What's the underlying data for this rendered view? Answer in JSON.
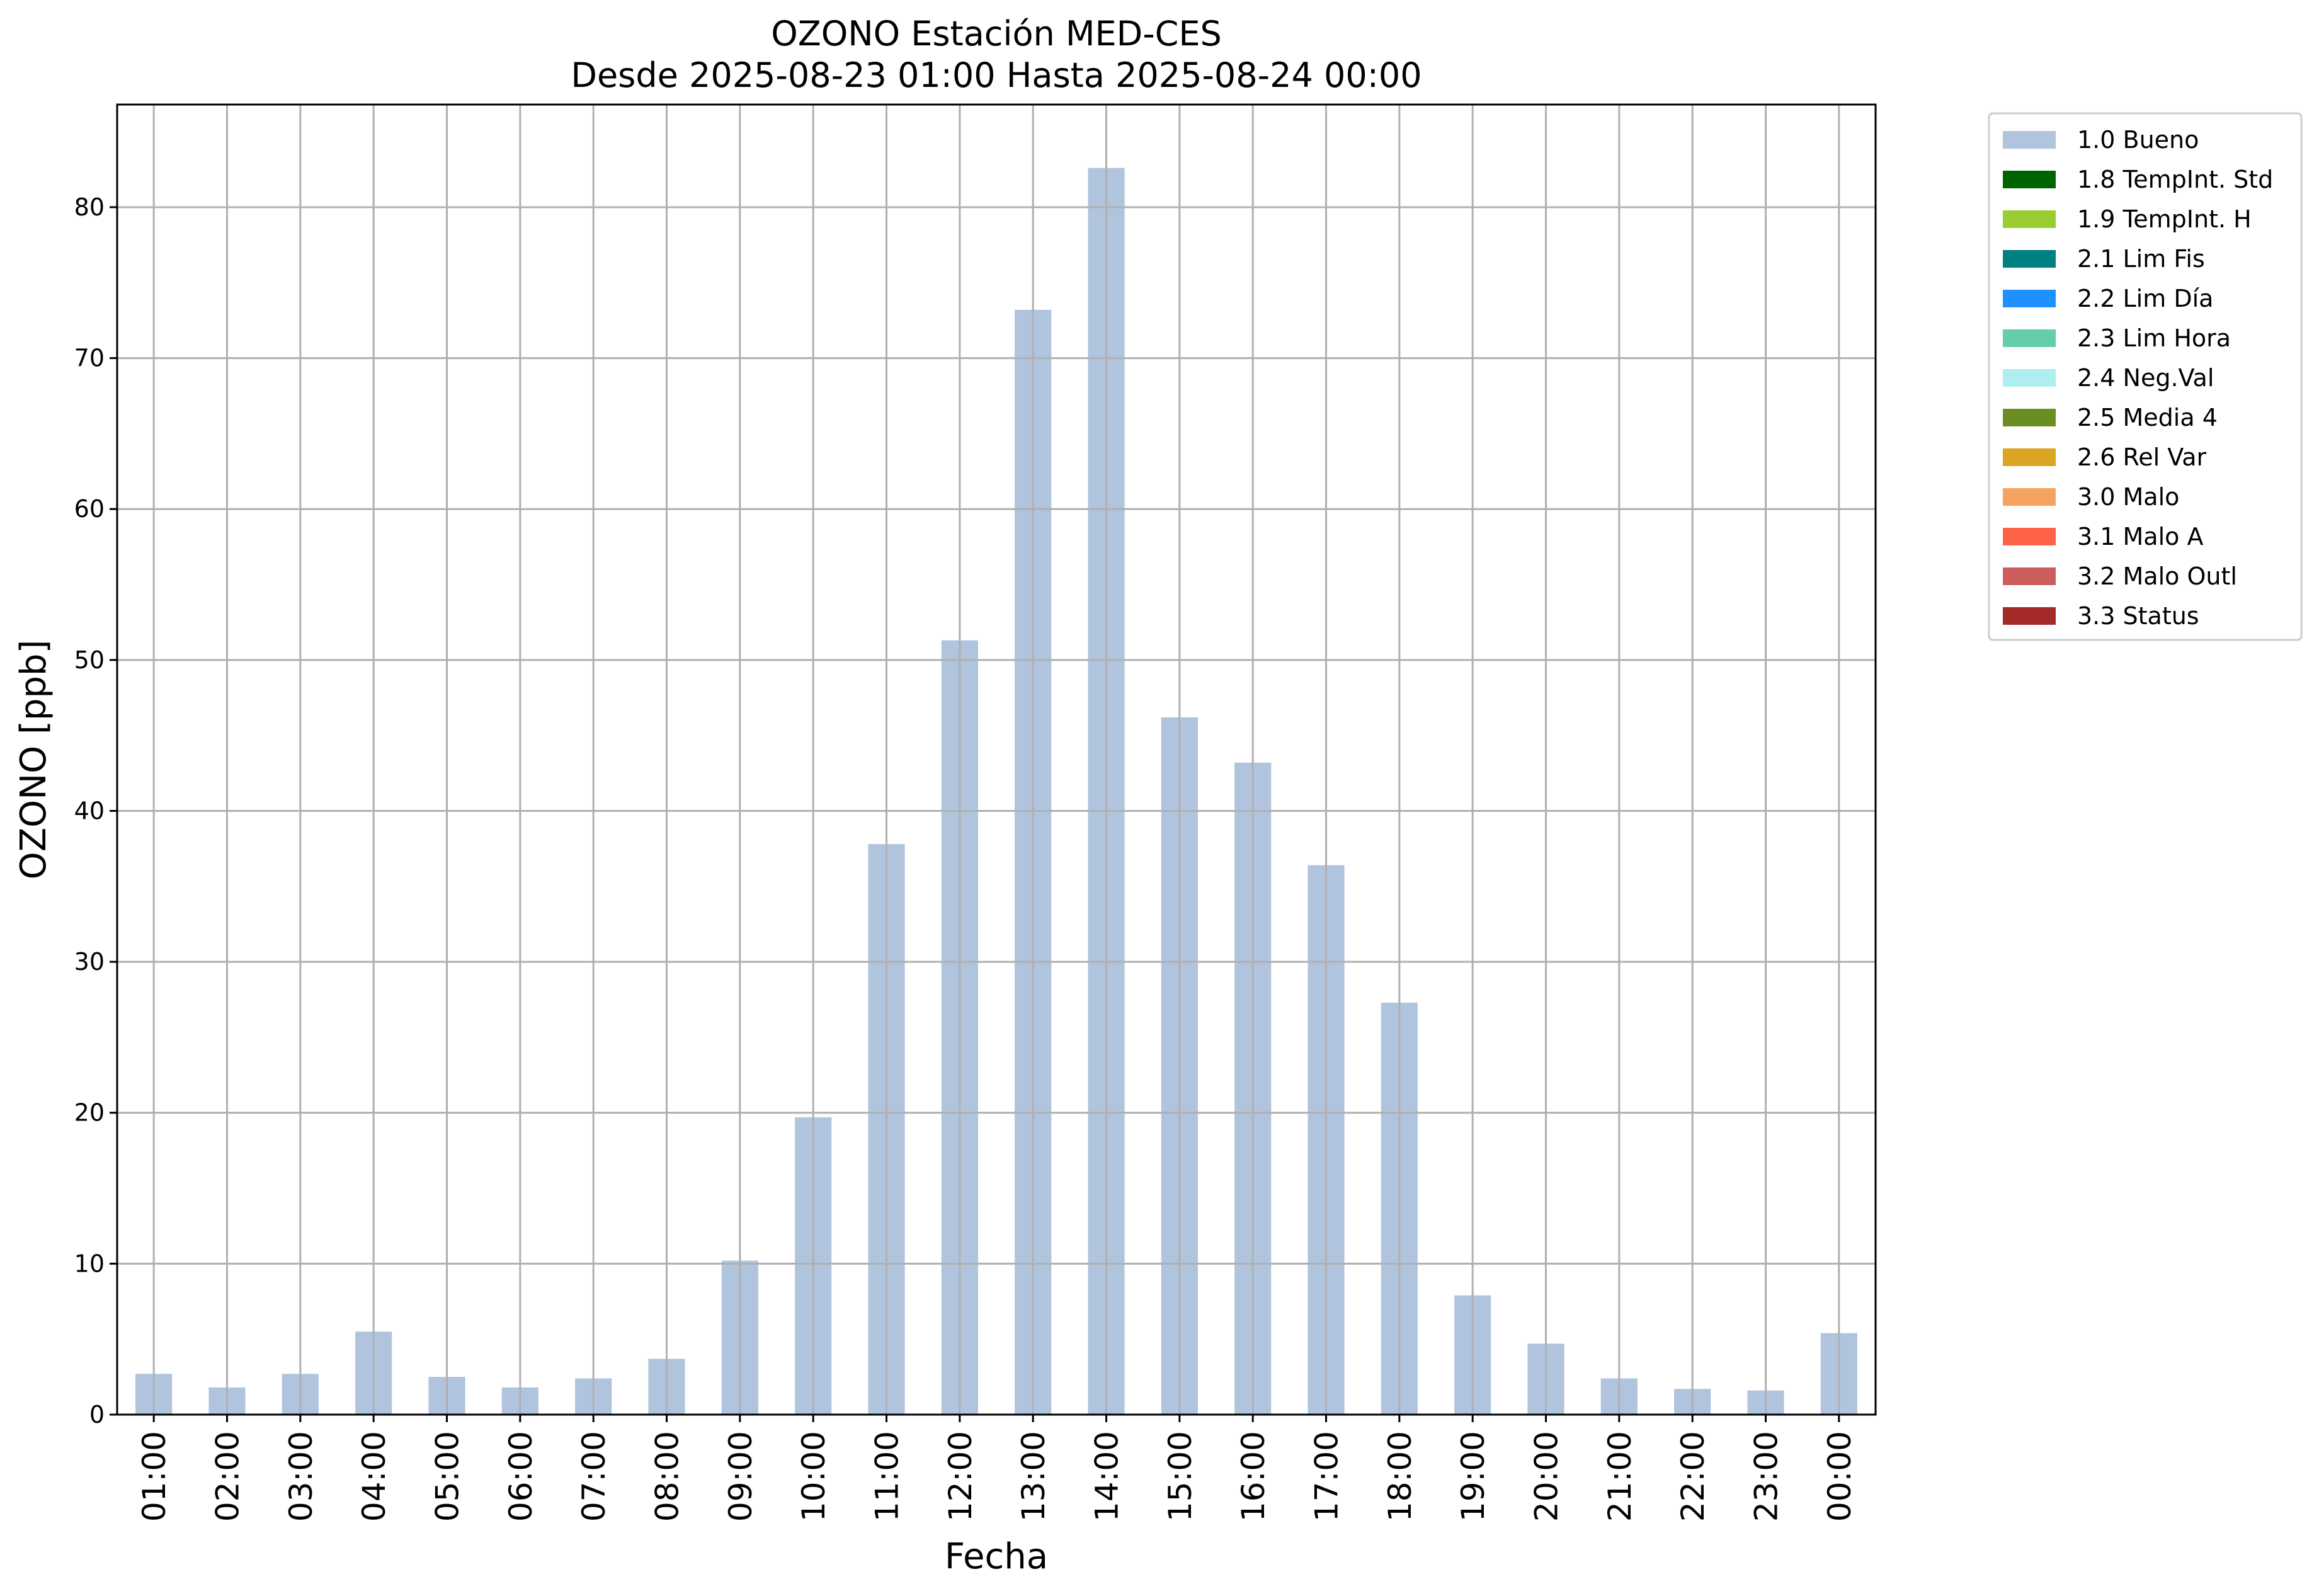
{
  "chart_data": {
    "type": "bar",
    "title": "OZONO Estación MED-CES",
    "subtitle": "Desde 2025-08-23 01:00 Hasta 2025-08-24 00:00",
    "xlabel": "Fecha",
    "ylabel": "OZONO [ppb]",
    "ylim": [
      0,
      86.8
    ],
    "yticks": [
      0,
      10,
      20,
      30,
      40,
      50,
      60,
      70,
      80
    ],
    "grid": true,
    "legend_position": "outside-top-right",
    "categories": [
      "01:00",
      "02:00",
      "03:00",
      "04:00",
      "05:00",
      "06:00",
      "07:00",
      "08:00",
      "09:00",
      "10:00",
      "11:00",
      "12:00",
      "13:00",
      "14:00",
      "15:00",
      "16:00",
      "17:00",
      "18:00",
      "19:00",
      "20:00",
      "21:00",
      "22:00",
      "23:00",
      "00:00"
    ],
    "series": [
      {
        "name": "1.0 Bueno",
        "color": "#b0c4de",
        "values": [
          2.7,
          1.8,
          2.7,
          5.5,
          2.5,
          1.8,
          2.4,
          3.7,
          10.2,
          19.7,
          37.8,
          51.3,
          73.2,
          82.6,
          46.2,
          43.2,
          36.4,
          27.3,
          7.9,
          4.7,
          2.4,
          1.7,
          1.6,
          5.4
        ]
      }
    ],
    "legend": [
      {
        "label": "1.0 Bueno",
        "color": "#b0c4de"
      },
      {
        "label": "1.8 TempInt. Std",
        "color": "#006400"
      },
      {
        "label": "1.9 TempInt. H",
        "color": "#9acd32"
      },
      {
        "label": "2.1 Lim Fis",
        "color": "#008080"
      },
      {
        "label": "2.2 Lim Día",
        "color": "#1e90ff"
      },
      {
        "label": "2.3 Lim Hora",
        "color": "#66cdaa"
      },
      {
        "label": "2.4 Neg.Val",
        "color": "#afeeee"
      },
      {
        "label": "2.5 Media 4",
        "color": "#6b8e23"
      },
      {
        "label": "2.6 Rel Var",
        "color": "#daa520"
      },
      {
        "label": "3.0 Malo",
        "color": "#f4a460"
      },
      {
        "label": "3.1 Malo A",
        "color": "#ff6347"
      },
      {
        "label": "3.2 Malo Outl",
        "color": "#cd5c5c"
      },
      {
        "label": "3.3 Status",
        "color": "#a52a2a"
      }
    ]
  }
}
